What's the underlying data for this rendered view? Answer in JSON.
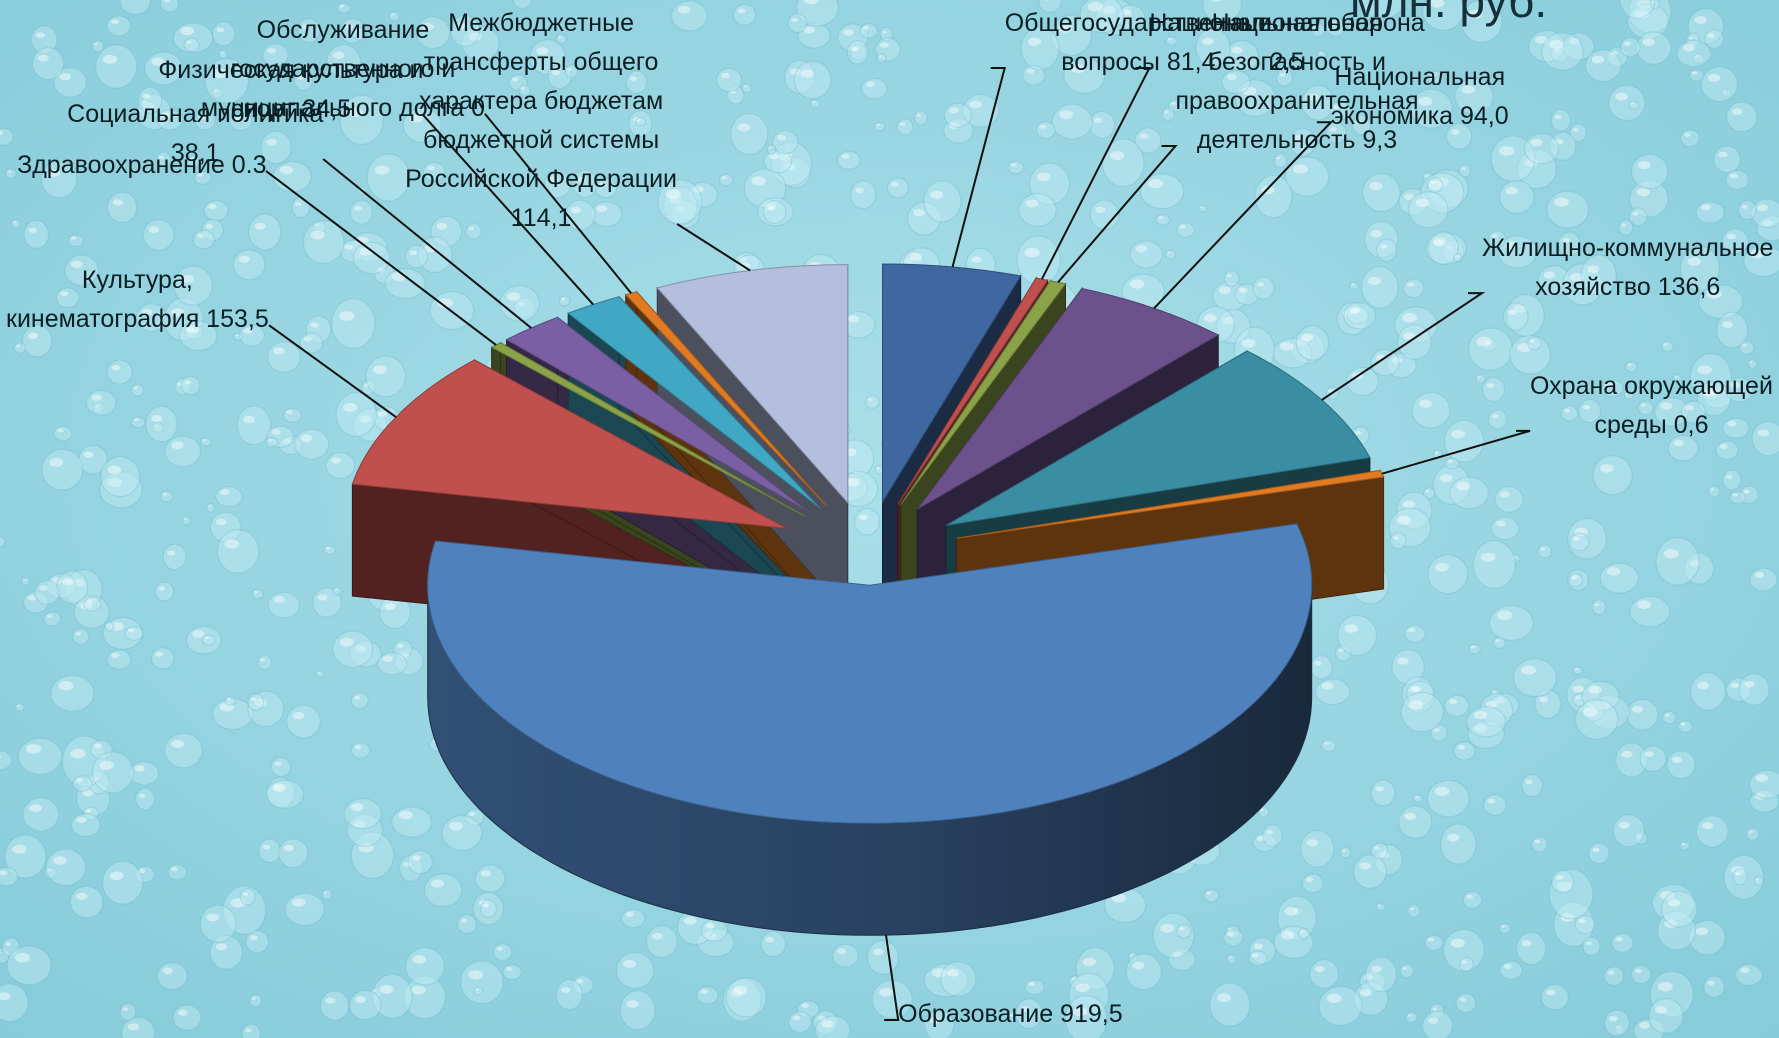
{
  "unit_title": "млн. руб.",
  "chart_data": {
    "type": "pie",
    "style": "3d-exploded",
    "title": "",
    "unit": "млн. руб.",
    "slices": [
      {
        "category": "Общегосударственные вопросы",
        "value": 81.4,
        "label": "Общегосударственные\nвопросы 81,4",
        "color": "#3f67a0"
      },
      {
        "category": "Национальная оборона",
        "value": 2.5,
        "label": "Национальная оборона\n2,5",
        "color": "#c0504d"
      },
      {
        "category": "Национальная безопасность и правоохранительная деятельность",
        "value": 9.3,
        "label": "Национальная\nбезопасность и\nправоохранительная\nдеятельность 9,3",
        "color": "#8aa348"
      },
      {
        "category": "Национальная экономика",
        "value": 94.0,
        "label": "Национальная\nэкономика 94,0",
        "color": "#6c528c"
      },
      {
        "category": "Жилищно-коммунальное хозяйство",
        "value": 136.6,
        "label": "Жилищно-коммунальное\nхозяйство 136,6",
        "color": "#3a8ea3"
      },
      {
        "category": "Охрана окружающей среды",
        "value": 0.6,
        "label": "Охрана окружающей\nсреды 0,6",
        "color": "#e07b22"
      },
      {
        "category": "Образование",
        "value": 919.5,
        "label": "Образование  919,5",
        "color": "#4f81bd"
      },
      {
        "category": "Культура, кинематография",
        "value": 153.5,
        "label": "Культура,\nкинематография 153,5",
        "color": "#c0504d"
      },
      {
        "category": "Здравоохранение",
        "value": 0.3,
        "label": "Здравоохранение 0.3",
        "color": "#8aa348"
      },
      {
        "category": "Социальная политика",
        "value": 38.1,
        "label": "Социальная политика\n38,1",
        "color": "#7b5fa5"
      },
      {
        "category": "Физическая культура и спорт",
        "value": 34.5,
        "label": "Физическая культура и\nспорт 34,5",
        "color": "#40a8c4"
      },
      {
        "category": "Обслуживание государственного и муниципального долга",
        "value": 0,
        "label": "Обслуживание\nгосударственного и\nмуниципального долга 0",
        "color": "#e07b22"
      },
      {
        "category": "Межбюджетные трансферты общего характера бюджетам бюджетной системы Российской Федерации",
        "value": 114.1,
        "label": "Межбюджетные\nтрансферты общего\nхарактера бюджетам\nбюджетной системы\nРоссийской Федерации\n114,1",
        "color": "#b3bfdc"
      }
    ]
  }
}
